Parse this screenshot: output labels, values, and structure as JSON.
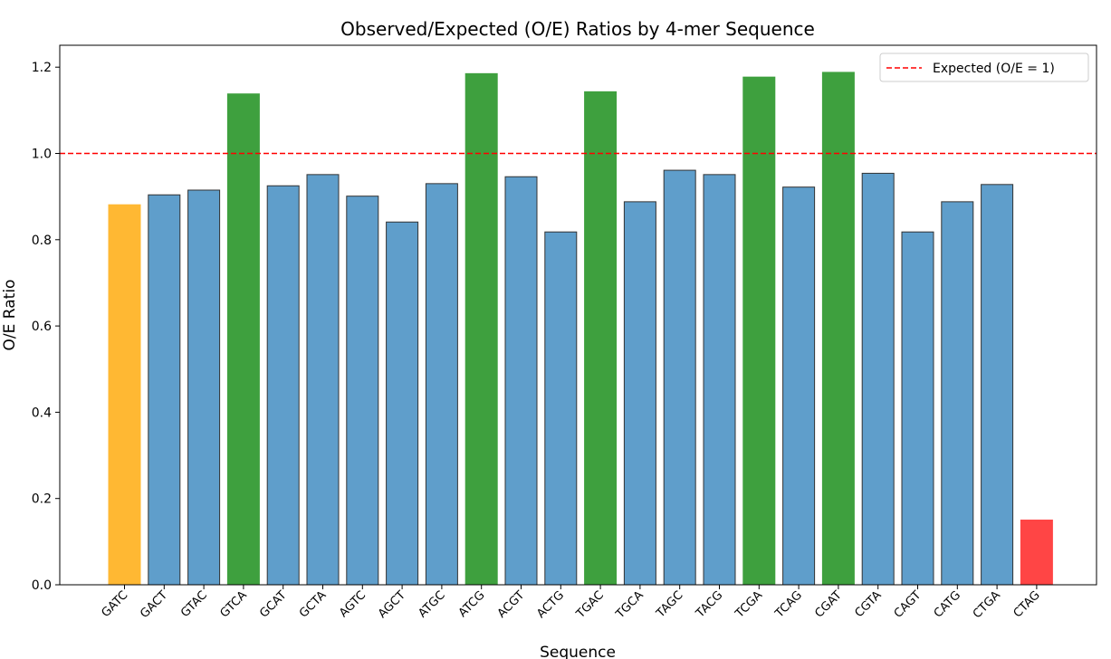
{
  "chart_data": {
    "type": "bar",
    "title": "Observed/Expected (O/E) Ratios by 4-mer Sequence",
    "xlabel": "Sequence",
    "ylabel": "O/E Ratio",
    "ylim": [
      0,
      1.25
    ],
    "yticks": [
      0.0,
      0.2,
      0.4,
      0.6,
      0.8,
      1.0,
      1.2
    ],
    "ytick_labels": [
      "0.0",
      "0.2",
      "0.4",
      "0.6",
      "0.8",
      "1.0",
      "1.2"
    ],
    "grid": false,
    "categories": [
      "GATC",
      "GACT",
      "GTAC",
      "GTCA",
      "GCAT",
      "GCTA",
      "AGTC",
      "AGCT",
      "ATGC",
      "ATCG",
      "ACGT",
      "ACTG",
      "TGAC",
      "TGCA",
      "TAGC",
      "TACG",
      "TCGA",
      "TCAG",
      "CGAT",
      "CGTA",
      "CAGT",
      "CATG",
      "CTGA",
      "CTAG"
    ],
    "values": [
      0.881,
      0.904,
      0.915,
      1.138,
      0.925,
      0.951,
      0.901,
      0.841,
      0.93,
      1.185,
      0.946,
      0.818,
      1.143,
      0.888,
      0.961,
      0.951,
      1.177,
      0.922,
      1.188,
      0.954,
      0.818,
      0.888,
      0.928,
      0.15
    ],
    "bar_colors": [
      "#ffb833",
      "#5f9ecb",
      "#5f9ecb",
      "#3ea03e",
      "#5f9ecb",
      "#5f9ecb",
      "#5f9ecb",
      "#5f9ecb",
      "#5f9ecb",
      "#3ea03e",
      "#5f9ecb",
      "#5f9ecb",
      "#3ea03e",
      "#5f9ecb",
      "#5f9ecb",
      "#5f9ecb",
      "#3ea03e",
      "#5f9ecb",
      "#3ea03e",
      "#5f9ecb",
      "#5f9ecb",
      "#5f9ecb",
      "#5f9ecb",
      "#ff4545"
    ],
    "bar_edge_colors": [
      "#ffb833",
      "#333333",
      "#333333",
      "#3ea03e",
      "#333333",
      "#333333",
      "#333333",
      "#333333",
      "#333333",
      "#3ea03e",
      "#333333",
      "#333333",
      "#3ea03e",
      "#333333",
      "#333333",
      "#333333",
      "#3ea03e",
      "#333333",
      "#3ea03e",
      "#333333",
      "#333333",
      "#333333",
      "#333333",
      "#ff4545"
    ],
    "reference_line": {
      "y": 1.0,
      "color": "#ff0000",
      "style": "dashed",
      "label": "Expected (O/E = 1)"
    },
    "legend": {
      "placement": "top-right",
      "entries": [
        "Expected (O/E = 1)"
      ]
    }
  }
}
